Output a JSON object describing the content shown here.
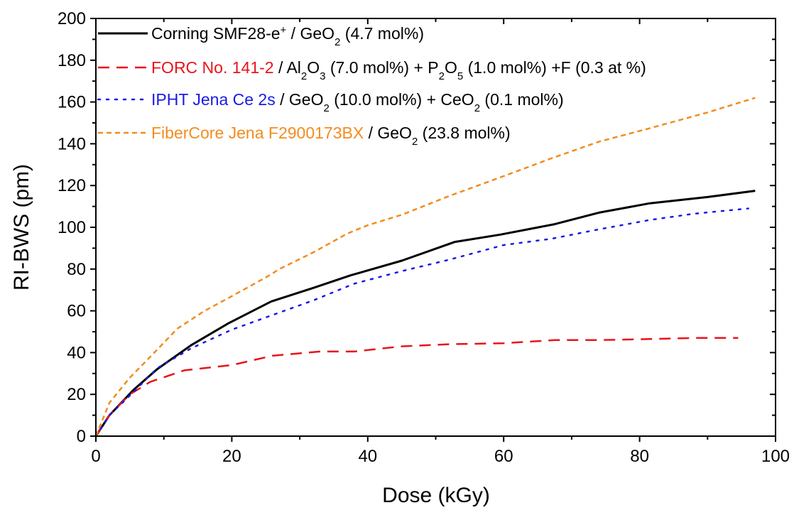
{
  "chart_data": {
    "type": "line",
    "xlabel": "Dose (kGy)",
    "ylabel": "RI-BWS (pm)",
    "xlim": [
      0,
      100
    ],
    "ylim": [
      0,
      200
    ],
    "x_ticks": [
      "0",
      "20",
      "40",
      "60",
      "80",
      "100"
    ],
    "y_ticks": [
      "0",
      "20",
      "40",
      "60",
      "80",
      "100",
      "120",
      "140",
      "160",
      "180",
      "200"
    ],
    "grid": false,
    "legend_position": "top-left",
    "series": [
      {
        "name": "Corning SMF28-e+ / GeO2 (4.7 mol%)",
        "color": "#000000",
        "dash": "solid",
        "x": [
          0,
          2,
          5.5,
          9,
          14,
          19.5,
          25.8,
          32,
          37.5,
          45,
          52.8,
          59.5,
          67.5,
          74,
          81.5,
          90,
          97
        ],
        "y": [
          0,
          10,
          22,
          32,
          43.5,
          54,
          64.5,
          71,
          77,
          84,
          93,
          96.5,
          101.5,
          107,
          111.5,
          114.5,
          117.5
        ]
      },
      {
        "name": "FORC No. 141-2 / Al2O3 (7.0 mol%) + P2O5 (1.0 mol%) +F (0.3 at %)",
        "color": "#e8141b",
        "dash": "dashed",
        "x": [
          0,
          2,
          5,
          8,
          13,
          20,
          26,
          33,
          38,
          45,
          52,
          60,
          67.5,
          74,
          81.5,
          88,
          94.5
        ],
        "y": [
          0,
          10,
          20,
          26,
          31.5,
          34,
          38.5,
          40.5,
          40.5,
          43,
          44,
          44.5,
          46,
          46,
          46.5,
          47,
          47
        ]
      },
      {
        "name": "IPHT Jena Ce 2s / GeO2 (10.0 mol%) + CeO2 (0.1 mol%)",
        "color": "#1a1ae6",
        "dash": "dotted",
        "x": [
          0,
          2,
          5.5,
          9,
          14,
          20,
          26,
          32,
          38,
          45,
          52,
          60,
          67,
          74,
          81.5,
          88,
          96
        ],
        "y": [
          0,
          10,
          21,
          32.5,
          42,
          51,
          58,
          65,
          73,
          79,
          84.5,
          91.5,
          94.5,
          99,
          103.5,
          106.5,
          109
        ]
      },
      {
        "name": "FiberCore Jena F2900173BX / GeO2 (23.8 mol%)",
        "color": "#f28c1e",
        "dash": "short-dashed",
        "x": [
          0,
          2,
          5,
          8,
          12,
          16,
          20,
          25,
          27,
          32,
          37,
          40,
          45,
          52,
          60,
          67,
          74,
          81,
          90,
          97
        ],
        "y": [
          0,
          16,
          28,
          38,
          51.5,
          60,
          67,
          76,
          80,
          88,
          97,
          101,
          106,
          115,
          124.5,
          133,
          141,
          147,
          155,
          162
        ]
      }
    ]
  },
  "legend": [
    {
      "color": "#000000",
      "dash": "solid",
      "parts": [
        {
          "t": "Corning SMF28-e",
          "c": "#000000"
        },
        {
          "t": "+",
          "c": "#000000",
          "sup": true
        },
        {
          "t": " / GeO",
          "c": "#000000"
        },
        {
          "t": "2",
          "c": "#000000",
          "sub": true
        },
        {
          "t": " (4.7 mol%)",
          "c": "#000000"
        }
      ]
    },
    {
      "color": "#e8141b",
      "dash": "dashed",
      "parts": [
        {
          "t": "FORC No. 141-2",
          "c": "#e8141b"
        },
        {
          "t": " / Al",
          "c": "#000000"
        },
        {
          "t": "2",
          "c": "#000000",
          "sub": true
        },
        {
          "t": "O",
          "c": "#000000"
        },
        {
          "t": "3",
          "c": "#000000",
          "sub": true
        },
        {
          "t": " (7.0 mol%) + P",
          "c": "#000000"
        },
        {
          "t": "2",
          "c": "#000000",
          "sub": true
        },
        {
          "t": "O",
          "c": "#000000"
        },
        {
          "t": "5",
          "c": "#000000",
          "sub": true
        },
        {
          "t": " (1.0 mol%) +F (0.3 at %)",
          "c": "#000000"
        }
      ]
    },
    {
      "color": "#1a1ae6",
      "dash": "dotted",
      "parts": [
        {
          "t": "IPHT Jena Ce 2s",
          "c": "#1a1ae6"
        },
        {
          "t": " / GeO",
          "c": "#000000"
        },
        {
          "t": "2",
          "c": "#000000",
          "sub": true
        },
        {
          "t": " (10.0 mol%) + CeO",
          "c": "#000000"
        },
        {
          "t": "2",
          "c": "#000000",
          "sub": true
        },
        {
          "t": " (0.1 mol%)",
          "c": "#000000"
        }
      ]
    },
    {
      "color": "#f28c1e",
      "dash": "short-dashed",
      "parts": [
        {
          "t": "FiberCore Jena F2900173BX",
          "c": "#f28c1e"
        },
        {
          "t": " / GeO",
          "c": "#000000"
        },
        {
          "t": "2",
          "c": "#000000",
          "sub": true
        },
        {
          "t": " (23.8 mol%)",
          "c": "#000000"
        }
      ]
    }
  ]
}
